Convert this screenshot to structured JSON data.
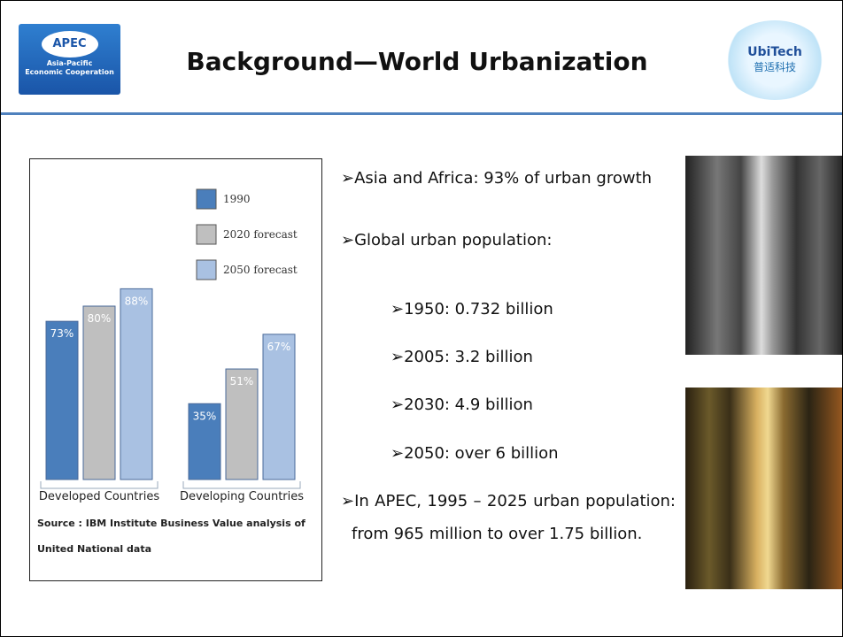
{
  "header": {
    "title": "Background—World Urbanization",
    "left_logo": {
      "name": "APEC",
      "lines": [
        "Asia-Pacific",
        "Economic Cooperation"
      ]
    },
    "right_logo": {
      "name": "UbiTech",
      "subtitle": "普适科技"
    }
  },
  "chart": {
    "type": "bar",
    "categories": [
      "Developed Countries",
      "Developing Countries"
    ],
    "series": [
      {
        "name": "1990",
        "color": "#4a7ebb",
        "values": [
          73,
          35
        ],
        "value_labels": [
          "73%",
          "35%"
        ]
      },
      {
        "name": "2020 forecast",
        "color": "#bfbfbf",
        "values": [
          80,
          51
        ],
        "value_labels": [
          "80%",
          "51%"
        ]
      },
      {
        "name": "2050 forecast",
        "color": "#a9c1e2",
        "values": [
          88,
          67
        ],
        "value_labels": [
          "88%",
          "67%"
        ]
      }
    ],
    "source": [
      "Source : IBM Institute Business Value analysis of",
      "United National data"
    ]
  },
  "bullets": [
    {
      "text": "➢Asia and Africa:  93%  of urban growth"
    },
    {
      "text": "➢Global urban population:"
    },
    {
      "text": "➢1950: 0.732 billion"
    },
    {
      "text": "➢2005: 3.2 billion"
    },
    {
      "text": "➢2030: 4.9 billion"
    },
    {
      "text": "➢2050: over 6 billion"
    },
    {
      "text": "➢In APEC, 1995 – 2025 urban population: from 965 million to over 1.75 billion."
    }
  ]
}
